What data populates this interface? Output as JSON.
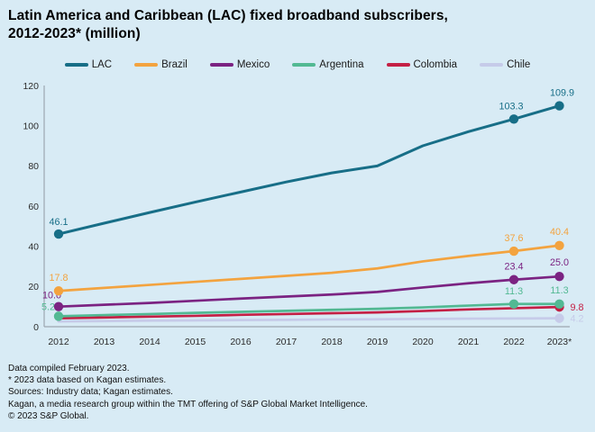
{
  "title_lines": [
    "Latin America and Caribbean (LAC) fixed broadband subscribers,",
    "2012-2023* (million)"
  ],
  "colors": {
    "background": "#d8ebf5",
    "axis": "#9da7b0",
    "lac": "#176E87",
    "brazil": "#F3A33F",
    "mexico": "#7B2382",
    "argentina": "#52B993",
    "colombia": "#C42045",
    "chile": "#C6CBE9"
  },
  "chart_data": {
    "type": "line",
    "title": "Latin America and Caribbean (LAC) fixed broadband subscribers, 2012-2023* (million)",
    "x": [
      2012,
      2013,
      2014,
      2015,
      2016,
      2017,
      2018,
      2019,
      2020,
      2021,
      2022,
      2023
    ],
    "xtick_labels": [
      "2012",
      "2013",
      "2014",
      "2015",
      "2016",
      "2017",
      "2018",
      "2019",
      "2020",
      "2021",
      "2022",
      "2023*"
    ],
    "ylim": [
      0,
      120
    ],
    "yticks": [
      0,
      20,
      40,
      60,
      80,
      100,
      120
    ],
    "grid": false,
    "legend_position": "top",
    "series": [
      {
        "name": "LAC",
        "color": "#176E87",
        "values": [
          46.1,
          51.5,
          56.8,
          62.0,
          67.0,
          72.0,
          76.5,
          80.0,
          90.0,
          97.0,
          103.3,
          109.9
        ],
        "point_labels": [
          {
            "year": 2012,
            "text": "46.1",
            "anchor": "middle",
            "dx": 0,
            "dy": -10
          },
          {
            "year": 2022,
            "text": "103.3",
            "anchor": "middle",
            "dx": -3,
            "dy": -11
          },
          {
            "year": 2023,
            "text": "109.9",
            "anchor": "middle",
            "dx": 3,
            "dy": -11
          }
        ]
      },
      {
        "name": "Brazil",
        "color": "#F3A33F",
        "values": [
          17.8,
          19.3,
          20.8,
          22.3,
          23.8,
          25.3,
          26.8,
          29.0,
          32.5,
          35.2,
          37.6,
          40.4
        ],
        "point_labels": [
          {
            "year": 2012,
            "text": "17.8",
            "anchor": "middle",
            "dx": 0,
            "dy": -11
          },
          {
            "year": 2022,
            "text": "37.6",
            "anchor": "middle",
            "dx": 0,
            "dy": -11
          },
          {
            "year": 2023,
            "text": "40.4",
            "anchor": "middle",
            "dx": 0,
            "dy": -12
          }
        ]
      },
      {
        "name": "Mexico",
        "color": "#7B2382",
        "values": [
          10.0,
          10.9,
          11.8,
          12.9,
          14.0,
          15.0,
          16.0,
          17.3,
          19.5,
          21.6,
          23.4,
          25.0
        ],
        "point_labels": [
          {
            "year": 2012,
            "text": "10.0",
            "anchor": "end",
            "dx": 3,
            "dy": -9
          },
          {
            "year": 2022,
            "text": "23.4",
            "anchor": "middle",
            "dx": 0,
            "dy": -11
          },
          {
            "year": 2023,
            "text": "25.0",
            "anchor": "middle",
            "dx": 0,
            "dy": -12
          }
        ]
      },
      {
        "name": "Argentina",
        "color": "#52B993",
        "values": [
          5.2,
          5.8,
          6.3,
          6.9,
          7.4,
          7.9,
          8.4,
          8.9,
          9.6,
          10.5,
          11.3,
          11.3
        ],
        "point_labels": [
          {
            "year": 2012,
            "text": "5.2",
            "anchor": "end",
            "dx": -4,
            "dy": -7
          },
          {
            "year": 2022,
            "text": "11.3",
            "anchor": "middle",
            "dx": 0,
            "dy": -11
          },
          {
            "year": 2023,
            "text": "11.3",
            "anchor": "middle",
            "dx": 0,
            "dy": -12
          }
        ]
      },
      {
        "name": "Colombia",
        "color": "#C42045",
        "values": [
          4.2,
          4.6,
          5.0,
          5.4,
          5.9,
          6.3,
          6.7,
          7.1,
          7.8,
          8.6,
          9.2,
          9.8
        ],
        "point_labels": [
          {
            "year": 2023,
            "text": "9.8",
            "anchor": "start",
            "dx": 12,
            "dy": 4
          }
        ]
      },
      {
        "name": "Chile",
        "color": "#C6CBE9",
        "values": [
          2.6,
          2.8,
          3.0,
          3.1,
          3.3,
          3.4,
          3.6,
          3.7,
          3.9,
          4.0,
          4.1,
          4.2
        ],
        "point_labels": [
          {
            "year": 2023,
            "text": "4.2",
            "anchor": "start",
            "dx": 12,
            "dy": 4
          }
        ]
      }
    ]
  },
  "footnotes": [
    "Data compiled February 2023.",
    "* 2023 data based on Kagan estimates.",
    "Sources: Industry data; Kagan estimates.",
    "Kagan, a media research group within the TMT offering of S&P Global Market Intelligence.",
    "© 2023 S&P Global."
  ]
}
